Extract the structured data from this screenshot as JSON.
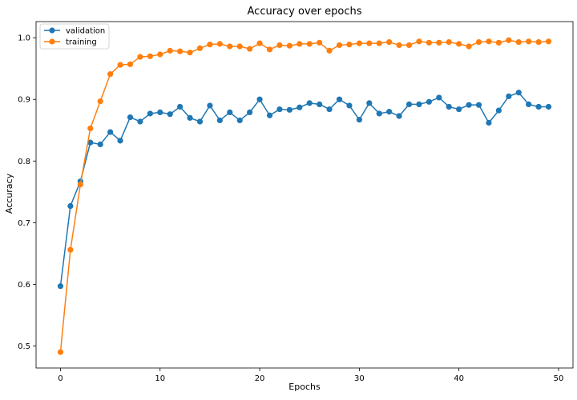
{
  "chart_data": {
    "type": "line",
    "title": "Accuracy over epochs",
    "xlabel": "Epochs",
    "ylabel": "Accuracy",
    "xlim": [
      -2.45,
      51.45
    ],
    "ylim": [
      0.4642,
      1.0262
    ],
    "x_ticks": [
      0,
      10,
      20,
      30,
      40,
      50
    ],
    "y_ticks": [
      0.5,
      0.6,
      0.7,
      0.8,
      0.9,
      1.0
    ],
    "x_tick_labels": [
      "0",
      "10",
      "20",
      "30",
      "40",
      "50"
    ],
    "y_tick_labels": [
      "0.5",
      "0.6",
      "0.7",
      "0.8",
      "0.9",
      "1.0"
    ],
    "grid": false,
    "legend_position": "top-left",
    "x": [
      0,
      1,
      2,
      3,
      4,
      5,
      6,
      7,
      8,
      9,
      10,
      11,
      12,
      13,
      14,
      15,
      16,
      17,
      18,
      19,
      20,
      21,
      22,
      23,
      24,
      25,
      26,
      27,
      28,
      29,
      30,
      31,
      32,
      33,
      34,
      35,
      36,
      37,
      38,
      39,
      40,
      41,
      42,
      43,
      44,
      45,
      46,
      47,
      48,
      49
    ],
    "series": [
      {
        "name": "validation",
        "color": "#1f77b4",
        "values": [
          0.597,
          0.727,
          0.767,
          0.83,
          0.827,
          0.847,
          0.833,
          0.871,
          0.864,
          0.877,
          0.879,
          0.876,
          0.888,
          0.87,
          0.864,
          0.89,
          0.866,
          0.879,
          0.866,
          0.879,
          0.9,
          0.874,
          0.884,
          0.883,
          0.887,
          0.894,
          0.892,
          0.884,
          0.9,
          0.89,
          0.867,
          0.894,
          0.877,
          0.88,
          0.873,
          0.892,
          0.892,
          0.896,
          0.903,
          0.888,
          0.884,
          0.891,
          0.891,
          0.862,
          0.882,
          0.905,
          0.911,
          0.892,
          0.888,
          0.888
        ]
      },
      {
        "name": "training",
        "color": "#ff7f0e",
        "values": [
          0.49,
          0.656,
          0.762,
          0.853,
          0.897,
          0.941,
          0.956,
          0.957,
          0.969,
          0.97,
          0.973,
          0.979,
          0.978,
          0.976,
          0.983,
          0.989,
          0.99,
          0.986,
          0.986,
          0.982,
          0.991,
          0.981,
          0.988,
          0.987,
          0.99,
          0.99,
          0.992,
          0.979,
          0.988,
          0.989,
          0.991,
          0.991,
          0.991,
          0.993,
          0.988,
          0.988,
          0.994,
          0.992,
          0.992,
          0.993,
          0.99,
          0.986,
          0.993,
          0.994,
          0.992,
          0.996,
          0.993,
          0.994,
          0.993,
          0.994
        ]
      }
    ]
  }
}
